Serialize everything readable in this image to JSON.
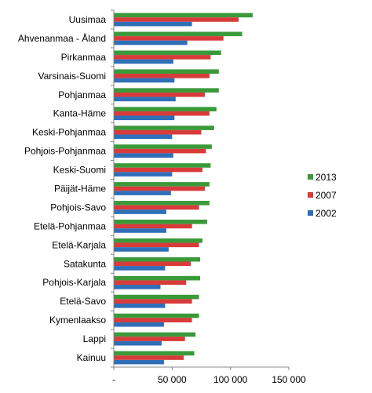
{
  "chart_data": {
    "type": "bar",
    "orientation": "horizontal",
    "title": "",
    "xlabel": "",
    "ylabel": "",
    "xlim": [
      0,
      150000
    ],
    "x_ticks": [
      0,
      50000,
      100000,
      150000
    ],
    "x_tick_labels": [
      "-",
      "50 000",
      "100 000",
      "150 000"
    ],
    "grid": false,
    "legend_position": "right",
    "categories": [
      "Uusimaa",
      "Ahvenanmaa - Åland",
      "Pirkanmaa",
      "Varsinais-Suomi",
      "Pohjanmaa",
      "Kanta-Häme",
      "Keski-Pohjanmaa",
      "Pohjois-Pohjanmaa",
      "Keski-Suomi",
      "Päijät-Häme",
      "Pohjois-Savo",
      "Etelä-Pohjanmaa",
      "Etelä-Karjala",
      "Satakunta",
      "Pohjois-Karjala",
      "Etelä-Savo",
      "Kymenlaakso",
      "Lappi",
      "Kainuu"
    ],
    "series": [
      {
        "name": "2013",
        "color": "#3a9a3a",
        "values": [
          119000,
          110000,
          92000,
          90000,
          90000,
          88000,
          86000,
          84000,
          83000,
          82000,
          82000,
          80000,
          76000,
          74000,
          74000,
          73000,
          73000,
          70000,
          69000
        ]
      },
      {
        "name": "2007",
        "color": "#d93a3a",
        "values": [
          107000,
          94000,
          83000,
          82000,
          78000,
          82000,
          75000,
          79000,
          76000,
          78000,
          73000,
          67000,
          73000,
          66000,
          62000,
          67000,
          67000,
          61000,
          60000
        ]
      },
      {
        "name": "2002",
        "color": "#2e6fb8",
        "values": [
          67000,
          63000,
          51000,
          52000,
          53000,
          52000,
          50000,
          51000,
          50000,
          49000,
          45000,
          45000,
          47000,
          44000,
          40000,
          44000,
          43000,
          41000,
          43000
        ]
      }
    ]
  }
}
